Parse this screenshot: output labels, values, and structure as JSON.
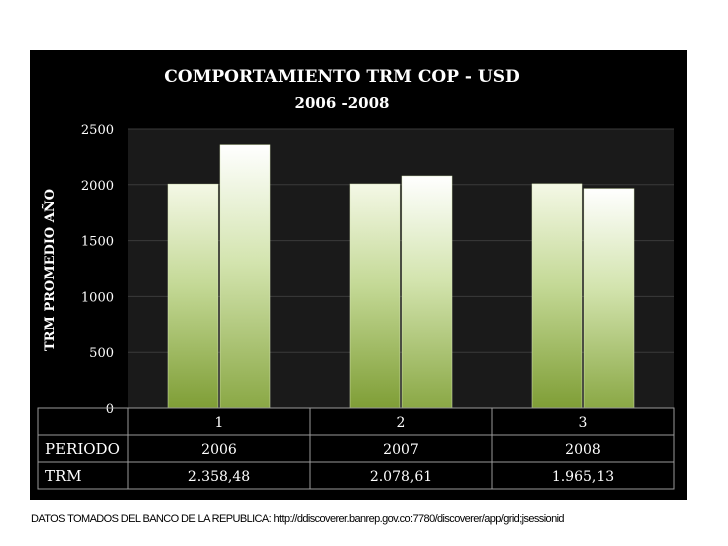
{
  "chart_data": {
    "type": "bar",
    "title": "COMPORTAMIENTO TRM COP - USD",
    "subtitle": "2006 -2008",
    "xlabel": "",
    "ylabel": "TRM PROMEDIO AÑO",
    "categories": [
      "1",
      "2",
      "3"
    ],
    "series": [
      {
        "values": [
          2006,
          2007,
          2008
        ],
        "color": "#c8dc9a"
      },
      {
        "values": [
          2358.48,
          2078.61,
          1965.13
        ],
        "color": "#e6f0cc"
      }
    ],
    "ylim": [
      0,
      2500
    ],
    "yticks": [
      "0",
      "500",
      "1000",
      "1500",
      "2000",
      "2500"
    ],
    "grid": true,
    "legend": "none",
    "table": {
      "rows": [
        {
          "label": "PERIODO",
          "values": [
            "2006",
            "2007",
            "2008"
          ]
        },
        {
          "label": "TRM",
          "values": [
            "2.358,48",
            "2.078,61",
            "1.965,13"
          ]
        }
      ]
    }
  },
  "footer": {
    "source": "DATOS TOMADOS DEL BANCO DE LA REPUBLICA: http://ddiscoverer.banrep.gov.co:7780/discoverer/app/grid;jsessionid"
  },
  "colors": {
    "background": "#000000",
    "text": "#ffffff",
    "bar_gradient_bottom": "#7f9e36",
    "bar_gradient_top": "#ffffff"
  }
}
